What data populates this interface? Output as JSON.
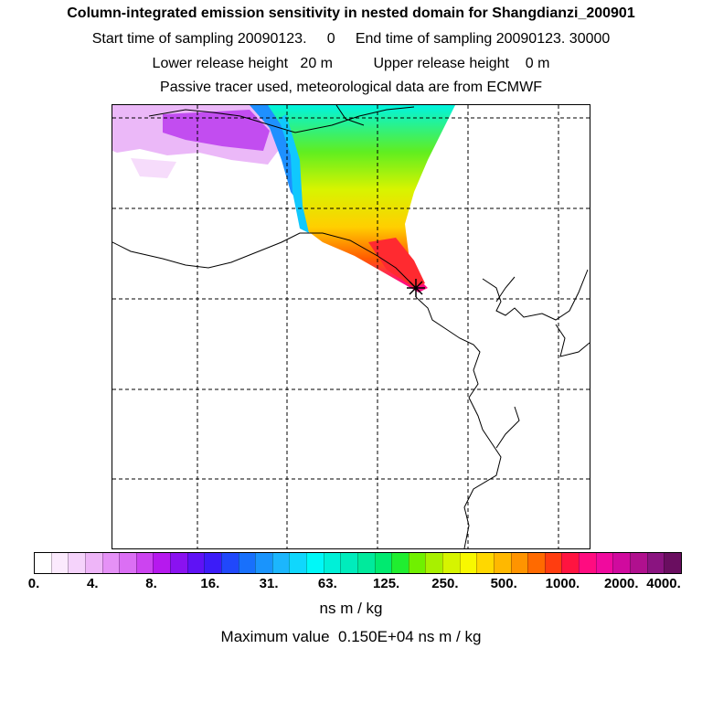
{
  "header": {
    "title": "Column-integrated emission sensitivity in nested domain for Shangdianzi_200901",
    "line2": "Start time of sampling 20090123.     0     End time of sampling 20090123. 30000",
    "line3": "Lower release height   20 m          Upper release height    0 m",
    "line4": "Passive tracer used, meteorological data are from ECMWF"
  },
  "map": {
    "release_marker": "asterisk",
    "gridlines": "dashed",
    "coastlines": "black"
  },
  "colorbar": {
    "levels": [
      "0.",
      "4.",
      "8.",
      "16.",
      "31.",
      "63.",
      "125.",
      "250.",
      "500.",
      "1000.",
      "2000.",
      "4000."
    ],
    "colors": [
      "#ffffff",
      "#fbeafd",
      "#f5d3fb",
      "#eeb5f8",
      "#e591f6",
      "#db6ff4",
      "#cc44f0",
      "#b619ee",
      "#8a12f0",
      "#5f12f5",
      "#3c1cf8",
      "#2048fb",
      "#1870fc",
      "#1a94fc",
      "#1cb6fd",
      "#10d7fd",
      "#00f8f8",
      "#00f0d8",
      "#00ecbc",
      "#00ea9c",
      "#00ea70",
      "#20ee30",
      "#70f000",
      "#a8f000",
      "#d6f400",
      "#f8f800",
      "#ffd800",
      "#ffb800",
      "#ff9400",
      "#ff6a00",
      "#ff3d10",
      "#ff1440",
      "#ff0c80",
      "#f00a9e",
      "#d00a9e",
      "#b0108e",
      "#8a1480",
      "#6a0e60"
    ]
  },
  "unit_label": "ns m / kg",
  "max_label": "Maximum value  0.150E+04 ns m / kg"
}
